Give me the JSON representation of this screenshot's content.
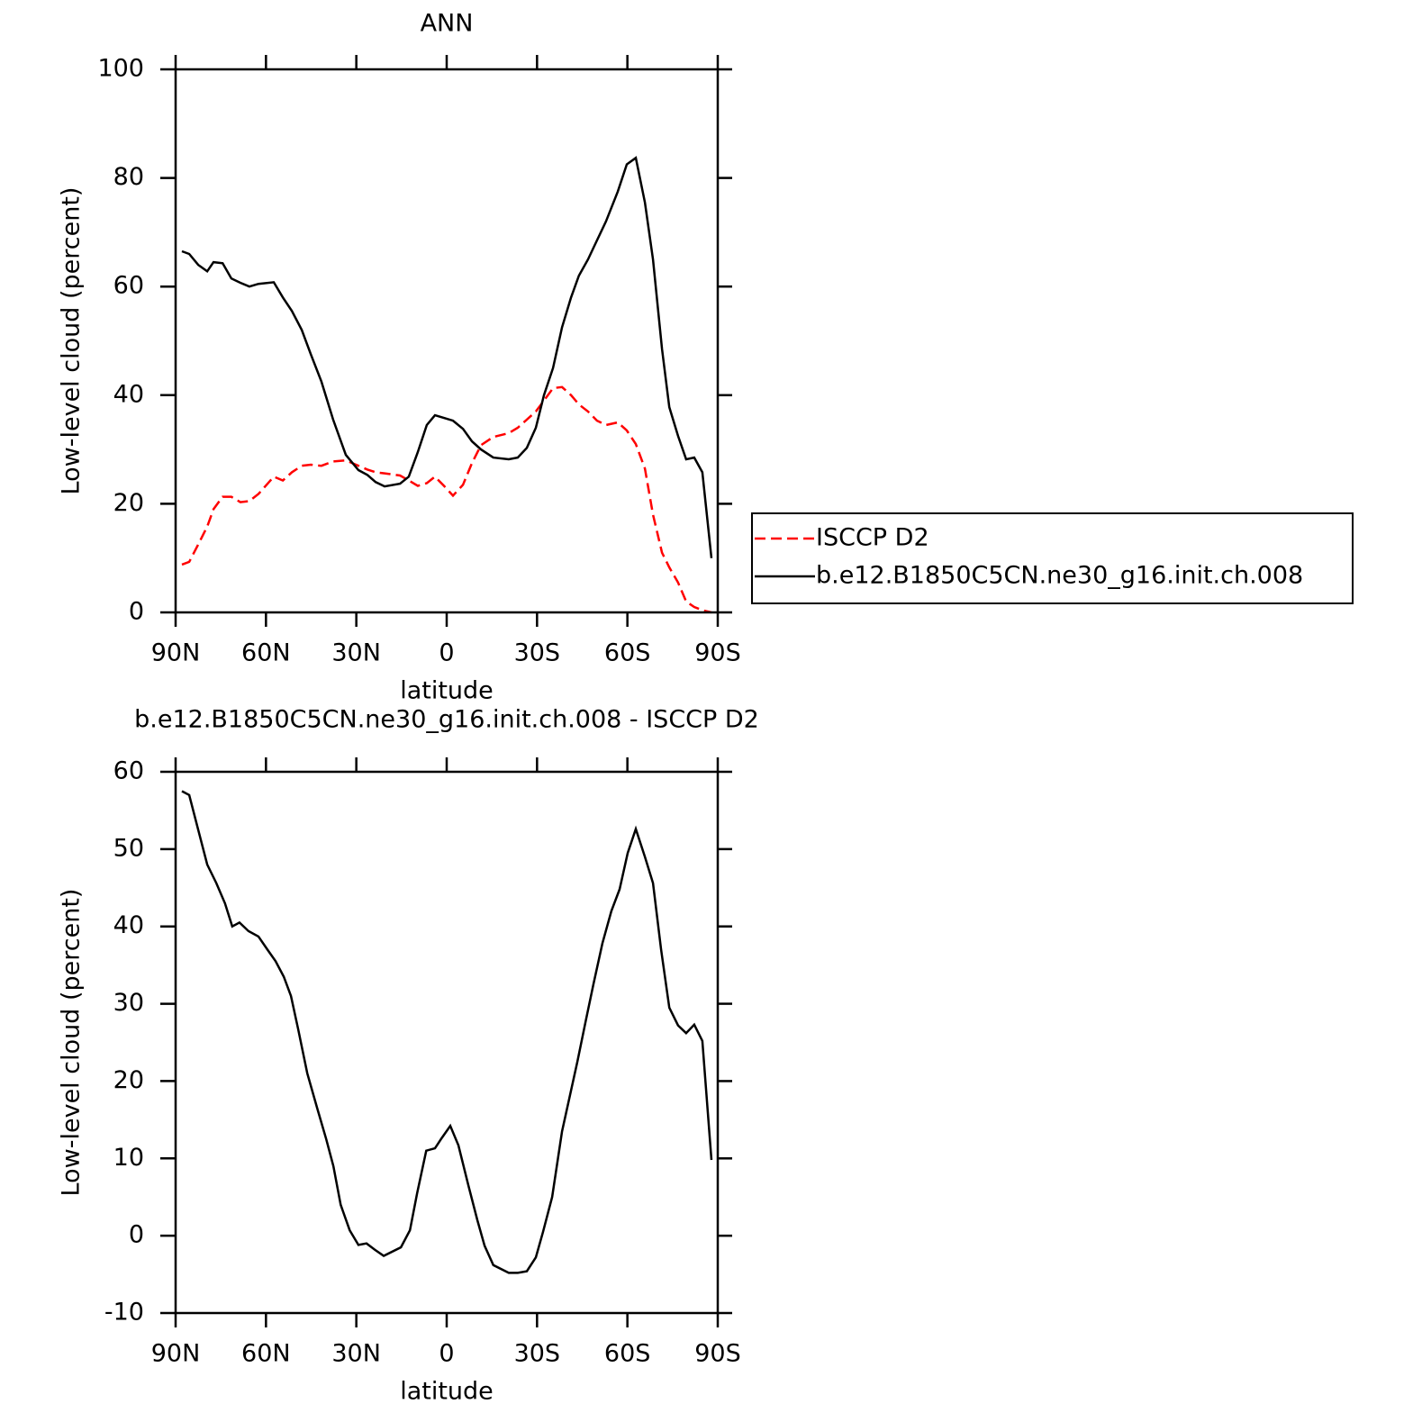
{
  "chart_data": [
    {
      "type": "line",
      "title": "ANN",
      "xlabel": "latitude",
      "ylabel": "Low-level cloud (percent)",
      "x": [
        87.9,
        85.5,
        82.5,
        79.5,
        77.4,
        74.4,
        71.5,
        68.5,
        65.5,
        62.5,
        57.4,
        54.4,
        51.4,
        48.1,
        45.1,
        41.6,
        37.7,
        33.5,
        29.3,
        26.3,
        23.6,
        20.6,
        15.5,
        12.6,
        9.6,
        6.6,
        3.9,
        0.9,
        -2.1,
        -5.4,
        -8.4,
        -11.4,
        -15.5,
        -20.6,
        -23.6,
        -26.6,
        -29.6,
        -32.3,
        -35.3,
        -38.3,
        -41.3,
        -43.9,
        -46.9,
        -49.9,
        -52.9,
        -56.8,
        -59.8,
        -62.8,
        -65.8,
        -68.5,
        -71.5,
        -73.9,
        -76.8,
        -79.5,
        -82.2,
        -84.9,
        -87.9
      ],
      "xlim": [
        90,
        -90
      ],
      "xticks": [
        {
          "value": 90,
          "label": "90N"
        },
        {
          "value": 60,
          "label": "60N"
        },
        {
          "value": 30,
          "label": "30N"
        },
        0,
        {
          "value": -30,
          "label": "30S"
        },
        {
          "value": -60,
          "label": "60S"
        },
        {
          "value": -90,
          "label": "90S"
        }
      ],
      "ylim": [
        0,
        100
      ],
      "yticks": [
        0,
        20,
        40,
        60,
        80,
        100
      ],
      "legend": "outside right",
      "series": [
        {
          "name": "ISCCP D2",
          "color": "#ff0000",
          "dash": "dashed",
          "values": [
            8.8,
            9.3,
            12.5,
            15.8,
            19,
            21.3,
            21.3,
            20.3,
            20.5,
            21.8,
            25,
            24.3,
            25.8,
            27,
            27.2,
            27,
            27.8,
            28,
            27,
            26.3,
            25.8,
            25.6,
            25.2,
            24.3,
            23.3,
            23.8,
            25,
            23.3,
            21.5,
            23.5,
            27.5,
            30.8,
            32.3,
            33,
            34,
            35.5,
            37,
            39,
            41.3,
            41.5,
            40,
            38.3,
            37,
            35.3,
            34.5,
            35,
            33.5,
            31,
            26.5,
            18,
            11,
            8.3,
            5.5,
            2,
            1,
            0.4,
            0
          ]
        },
        {
          "name": "b.e12.B1850C5CN.ne30_g16.init.ch.008",
          "color": "#000000",
          "dash": "solid",
          "values": [
            66.5,
            66,
            64,
            62.8,
            64.5,
            64.3,
            61.5,
            60.7,
            60,
            60.5,
            60.8,
            58,
            55.5,
            52,
            47.5,
            42.5,
            35.5,
            29,
            26.2,
            25.3,
            24,
            23.2,
            23.7,
            25,
            29.5,
            34.5,
            36.3,
            35.8,
            35.3,
            33.8,
            31.5,
            30,
            28.5,
            28.2,
            28.5,
            30.3,
            34,
            40,
            45,
            52.5,
            58,
            62,
            65,
            68.5,
            72,
            77.5,
            82.5,
            83.7,
            75.5,
            65,
            48.5,
            37.8,
            32.5,
            28.2,
            28.5,
            25.8,
            10
          ]
        }
      ]
    },
    {
      "type": "line",
      "title": "b.e12.B1850C5CN.ne30_g16.init.ch.008 - ISCCP D2",
      "xlabel": "latitude",
      "ylabel": "Low-level cloud (percent)",
      "x": [
        87.9,
        85.5,
        82.5,
        79.5,
        76.5,
        73.6,
        71.2,
        68.8,
        65.8,
        62.5,
        59.5,
        56.8,
        54.1,
        51.7,
        49.3,
        46.3,
        43.0,
        40.0,
        37.6,
        35.2,
        32.2,
        29.3,
        26.6,
        23.9,
        20.9,
        15.2,
        12.2,
        9.8,
        6.8,
        3.9,
        1.7,
        -1.2,
        -3.9,
        -7.2,
        -10.2,
        -12.6,
        -15.5,
        -20.6,
        -23.6,
        -26.6,
        -29.6,
        -32.0,
        -35.0,
        -38.3,
        -43.4,
        -46.3,
        -48.7,
        -51.7,
        -54.7,
        -57.4,
        -60.1,
        -62.8,
        -65.8,
        -68.5,
        -71.2,
        -73.9,
        -76.8,
        -79.5,
        -82.2,
        -84.9,
        -87.9
      ],
      "xlim": [
        90,
        -90
      ],
      "xticks": [
        {
          "value": 90,
          "label": "90N"
        },
        {
          "value": 60,
          "label": "60N"
        },
        {
          "value": 30,
          "label": "30N"
        },
        0,
        {
          "value": -30,
          "label": "30S"
        },
        {
          "value": -60,
          "label": "60S"
        },
        {
          "value": -90,
          "label": "90S"
        }
      ],
      "ylim": [
        -10,
        60
      ],
      "yticks": [
        -10,
        0,
        10,
        20,
        30,
        40,
        50,
        60
      ],
      "series": [
        {
          "color": "#000000",
          "dash": "solid",
          "values": [
            57.5,
            57,
            52.5,
            48,
            45.6,
            43,
            40,
            40.5,
            39.4,
            38.7,
            37,
            35.5,
            33.5,
            31,
            26.7,
            21,
            16.5,
            12.5,
            9,
            4,
            0.7,
            -1.2,
            -1,
            -1.8,
            -2.6,
            -1.5,
            0.7,
            5.5,
            11,
            11.3,
            12.6,
            14.2,
            11.7,
            6.5,
            2,
            -1.3,
            -3.8,
            -4.8,
            -4.8,
            -4.6,
            -2.8,
            0.5,
            5,
            13.5,
            22.5,
            28,
            32.5,
            37.8,
            42,
            44.8,
            49.5,
            52.6,
            49,
            45.6,
            37,
            29.5,
            27.2,
            26.2,
            27.3,
            25.2,
            9.8
          ]
        }
      ]
    }
  ]
}
